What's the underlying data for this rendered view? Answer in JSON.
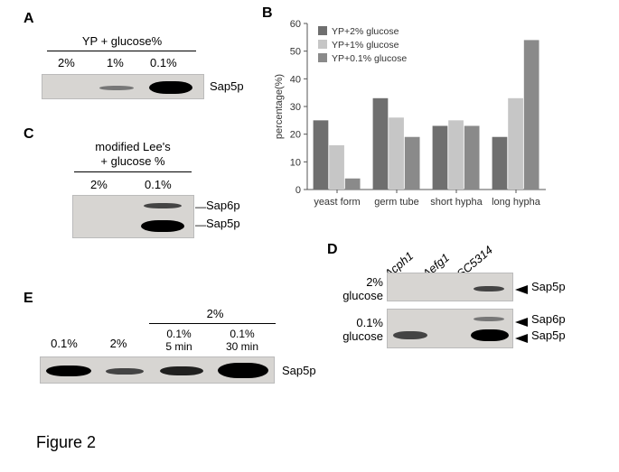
{
  "figure_label": "Figure 2",
  "panelA": {
    "label": "A",
    "header": "YP + glucose%",
    "lanes": [
      "2%",
      "1%",
      "0.1%"
    ],
    "protein": "Sap5p",
    "intensity": [
      0.05,
      0.3,
      1.0
    ],
    "blot_bg": "#d7d5d2",
    "band_color": "#000000"
  },
  "panelB": {
    "label": "B",
    "type": "bar",
    "categories": [
      "yeast form",
      "germ tube",
      "short hypha",
      "long hypha"
    ],
    "series": [
      {
        "name": "YP+2% glucose",
        "color": "#6f6f6f",
        "values": [
          25,
          33,
          23,
          19
        ]
      },
      {
        "name": "YP+1% glucose",
        "color": "#c6c6c6",
        "values": [
          16,
          26,
          25,
          33
        ]
      },
      {
        "name": "YP+0.1% glucose",
        "color": "#8a8a8a",
        "values": [
          4,
          19,
          23,
          54
        ]
      }
    ],
    "ylabel": "percentage(%)",
    "ylim": [
      0,
      60
    ],
    "ytick_step": 10,
    "plot_bg": "#ffffff",
    "axis_color": "#555555",
    "bar_group_gap": 0.2,
    "label_fontsize": 11
  },
  "panelC": {
    "label": "C",
    "header_line1": "modified Lee's",
    "header_line2": "+ glucose %",
    "lanes": [
      "2%",
      "0.1%"
    ],
    "proteins": [
      "Sap6p",
      "Sap5p"
    ],
    "lane_intensity": {
      "0": [
        0.0,
        0.0
      ],
      "1": [
        0.3,
        1.0
      ]
    },
    "blot_bg": "#d7d5d2"
  },
  "panelD": {
    "label": "D",
    "strains": [
      "Δcph1",
      "Δefg1",
      "SC5314"
    ],
    "row_labels_line1": [
      "2%",
      "0.1%"
    ],
    "row_labels_line2": [
      "glucose",
      "glucose"
    ],
    "proteins_top": [
      "Sap5p"
    ],
    "proteins_bottom": [
      "Sap6p",
      "Sap5p"
    ],
    "top_intensity": [
      0.0,
      0.0,
      0.35
    ],
    "bottom_sap6_intensity": [
      0.0,
      0.0,
      0.25
    ],
    "bottom_sap5_intensity": [
      0.5,
      0.0,
      1.0
    ],
    "blot_bg": "#d7d5d2"
  },
  "panelE": {
    "label": "E",
    "group2_header": "2%",
    "lanes": [
      "0.1%",
      "2%",
      "0.1%\n5 min",
      "0.1%\n30 min"
    ],
    "protein": "Sap5p",
    "intensity": [
      0.9,
      0.35,
      0.6,
      1.0
    ],
    "blot_bg": "#d7d5d2"
  }
}
